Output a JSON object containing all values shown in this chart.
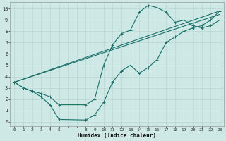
{
  "xlabel": "Humidex (Indice chaleur)",
  "background_color": "#cde8e5",
  "grid_color": "#b8d8d5",
  "line_color": "#1a7068",
  "xlim": [
    -0.5,
    23.5
  ],
  "ylim": [
    -0.4,
    10.6
  ],
  "xtick_positions": [
    0,
    1,
    2,
    3,
    4,
    5,
    8,
    9,
    10,
    11,
    12,
    13,
    14,
    15,
    16,
    17,
    18,
    19,
    20,
    21,
    22,
    23
  ],
  "xtick_labels": [
    "0",
    "1",
    "2",
    "3",
    "4",
    "5",
    "8",
    "9",
    "10",
    "11",
    "12",
    "13",
    "14",
    "15",
    "16",
    "17",
    "18",
    "19",
    "20",
    "21",
    "22",
    "23"
  ],
  "ytick_positions": [
    0,
    1,
    2,
    3,
    4,
    5,
    6,
    7,
    8,
    9,
    10
  ],
  "ytick_labels": [
    "0",
    "1",
    "2",
    "3",
    "4",
    "5",
    "6",
    "7",
    "8",
    "9",
    "10"
  ],
  "line1_x": [
    0,
    1,
    2,
    3,
    4,
    5,
    8,
    9,
    10,
    11,
    12,
    13,
    14,
    15,
    16,
    17,
    18,
    19,
    20,
    21,
    22,
    23
  ],
  "line1_y": [
    3.5,
    3.0,
    2.7,
    2.2,
    1.5,
    0.2,
    0.15,
    0.6,
    1.7,
    3.5,
    4.5,
    5.0,
    4.3,
    4.8,
    5.5,
    7.0,
    7.5,
    8.0,
    8.3,
    8.5,
    9.0,
    9.8
  ],
  "line2_x": [
    0,
    1,
    2,
    3,
    4,
    5,
    8,
    9,
    10,
    11,
    12,
    13,
    14,
    15,
    16,
    17,
    18,
    19,
    20,
    21,
    22,
    23
  ],
  "line2_y": [
    3.5,
    3.0,
    2.7,
    2.5,
    2.2,
    1.5,
    1.5,
    2.0,
    5.0,
    6.8,
    7.8,
    8.1,
    9.7,
    10.3,
    10.1,
    9.7,
    8.8,
    9.0,
    8.5,
    8.3,
    8.5,
    9.0
  ],
  "line3_x": [
    0,
    23
  ],
  "line3_y": [
    3.5,
    9.8
  ],
  "line4_x": [
    0,
    23
  ],
  "line4_y": [
    3.5,
    9.5
  ]
}
